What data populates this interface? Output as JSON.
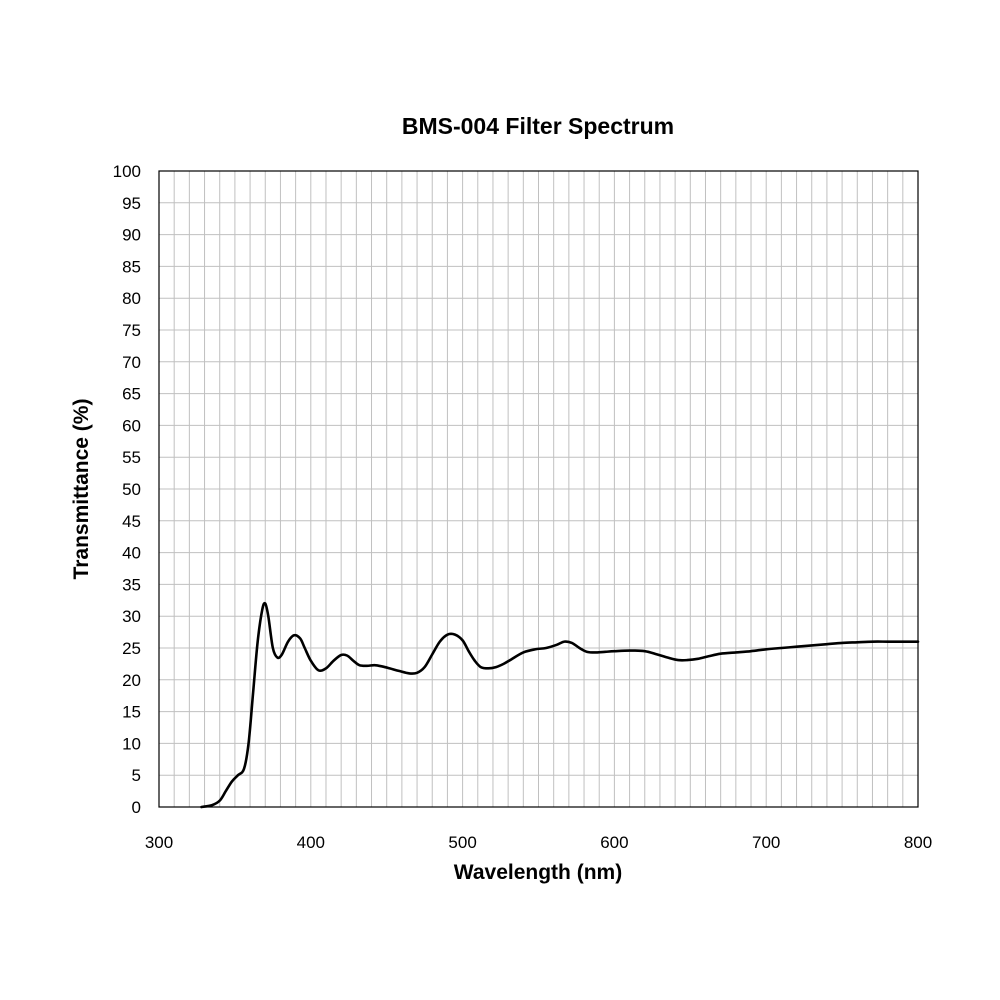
{
  "chart_data": {
    "type": "line",
    "title": "BMS-004 Filter Spectrum",
    "xlabel": "Wavelength (nm)",
    "ylabel": "Transmittance (%)",
    "xlim": [
      300,
      800
    ],
    "ylim": [
      0,
      100
    ],
    "x_ticks": [
      "300",
      "400",
      "500",
      "600",
      "700",
      "800"
    ],
    "y_ticks": [
      "0",
      "5",
      "10",
      "15",
      "20",
      "25",
      "30",
      "35",
      "40",
      "45",
      "50",
      "55",
      "60",
      "65",
      "70",
      "75",
      "80",
      "85",
      "90",
      "95",
      "100"
    ],
    "x_minor_step": 10,
    "y_minor_step": 5,
    "grid": true,
    "legend": "none",
    "line_color": "#000000",
    "grid_color": "#c0c0c0",
    "series": [
      {
        "x": [
          328,
          335,
          340,
          344,
          348,
          352,
          356,
          359,
          362,
          365,
          368,
          370,
          372,
          375,
          378,
          381,
          385,
          389,
          393,
          396,
          400,
          405,
          410,
          415,
          420,
          424,
          428,
          432,
          437,
          442,
          447,
          452,
          458,
          465,
          470,
          475,
          480,
          485,
          490,
          495,
          500,
          504,
          508,
          512,
          517,
          522,
          527,
          532,
          540,
          548,
          555,
          562,
          567,
          572,
          577,
          582,
          588,
          594,
          600,
          610,
          620,
          628,
          635,
          642,
          648,
          655,
          662,
          670,
          680,
          690,
          700,
          710,
          720,
          730,
          740,
          750,
          760,
          770,
          780,
          790,
          800
        ],
        "y": [
          0,
          0.3,
          1,
          2.5,
          4,
          5,
          6,
          10,
          18,
          26,
          31,
          32,
          30,
          25,
          23.5,
          24,
          26,
          27,
          26.5,
          25,
          23,
          21.5,
          21.8,
          23,
          23.9,
          23.8,
          23,
          22.3,
          22.2,
          22.3,
          22.1,
          21.8,
          21.4,
          21,
          21.1,
          22,
          24,
          26,
          27.1,
          27.1,
          26.2,
          24.5,
          23,
          22,
          21.8,
          22,
          22.5,
          23.2,
          24.3,
          24.8,
          25,
          25.5,
          26,
          25.8,
          25,
          24.4,
          24.3,
          24.4,
          24.5,
          24.6,
          24.5,
          24,
          23.5,
          23.1,
          23.1,
          23.3,
          23.7,
          24.1,
          24.3,
          24.5,
          24.8,
          25,
          25.2,
          25.4,
          25.6,
          25.8,
          25.9,
          26,
          26,
          26,
          26
        ]
      }
    ]
  }
}
